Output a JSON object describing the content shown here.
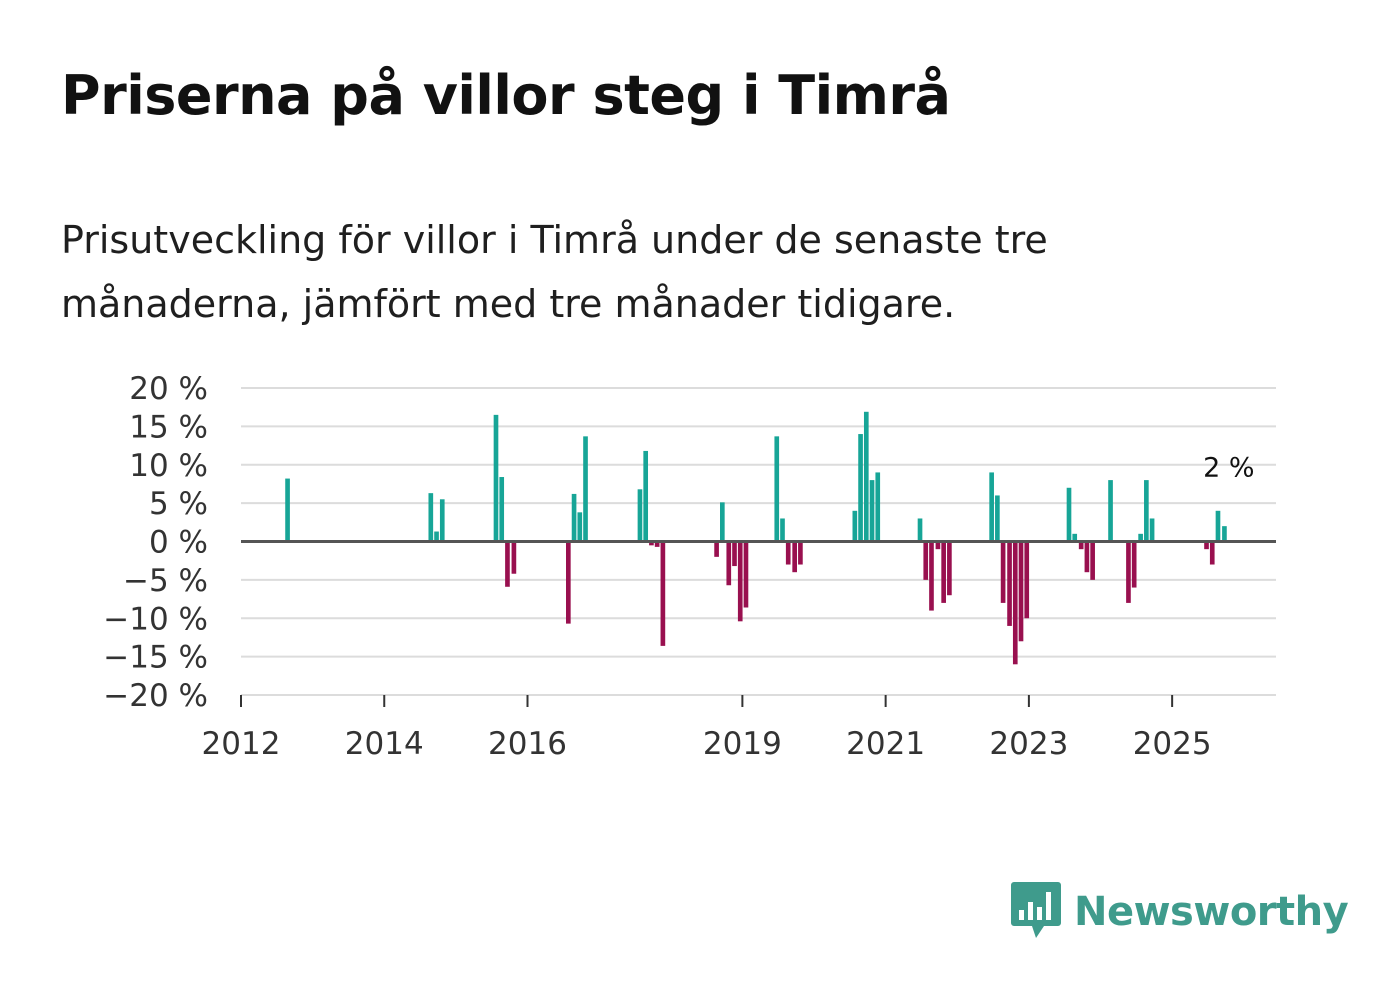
{
  "title": "Priserna på villor steg i Timrå",
  "subtitle": "Prisutveckling för villor i Timrå under de senaste tre månaderna, jämfört med tre månader tidigare.",
  "brand": {
    "name": "Newsworthy",
    "color": "#3f9b8c",
    "icon": "newsworthy-logo-icon"
  },
  "colors": {
    "positive": "#17a597",
    "negative": "#99104f",
    "grid": "#dcdcdc",
    "zero": "#555555"
  },
  "chart_data": {
    "type": "bar",
    "title": "Priserna på villor steg i Timrå",
    "xlabel": "",
    "ylabel": "",
    "xlim": [
      2012,
      2026.45
    ],
    "ylim": [
      -20,
      20
    ],
    "y_ticks": [
      20,
      15,
      10,
      5,
      0,
      -5,
      -10,
      -15,
      -20
    ],
    "y_tick_labels": [
      "20 %",
      "15 %",
      "10 %",
      "5 %",
      "0 %",
      "−5 %",
      "−10 %",
      "−15 %",
      "−20 %"
    ],
    "x_ticks": [
      2012,
      2014,
      2016,
      2019,
      2021,
      2023,
      2025
    ],
    "x_tick_labels": [
      "2012",
      "2014",
      "2016",
      "2019",
      "2021",
      "2023",
      "2025"
    ],
    "annotation": {
      "text": "2 %",
      "x": 2025.75,
      "y": 2
    },
    "bar_width_years": 0.065,
    "series": [
      {
        "name": "Prisutveckling",
        "x": [
          2012.65,
          2014.65,
          2014.73,
          2014.81,
          2015.56,
          2015.64,
          2015.72,
          2015.81,
          2016.57,
          2016.65,
          2016.73,
          2016.81,
          2017.57,
          2017.65,
          2017.73,
          2017.81,
          2017.89,
          2018.64,
          2018.72,
          2018.81,
          2018.89,
          2018.97,
          2019.05,
          2019.48,
          2019.56,
          2019.64,
          2019.73,
          2019.81,
          2020.57,
          2020.65,
          2020.73,
          2020.81,
          2020.89,
          2021.48,
          2021.56,
          2021.64,
          2021.73,
          2021.81,
          2021.89,
          2022.48,
          2022.56,
          2022.64,
          2022.73,
          2022.81,
          2022.89,
          2022.97,
          2023.56,
          2023.64,
          2023.73,
          2023.81,
          2023.89,
          2024.14,
          2024.39,
          2024.47,
          2024.56,
          2024.64,
          2024.72,
          2025.48,
          2025.56,
          2025.64,
          2025.73
        ],
        "values": [
          8.2,
          6.3,
          1.3,
          5.5,
          16.5,
          8.4,
          -5.9,
          -4.2,
          -10.7,
          6.2,
          3.8,
          13.7,
          6.8,
          11.8,
          -0.5,
          -0.7,
          -13.6,
          -2.0,
          5.1,
          -5.7,
          -3.2,
          -10.4,
          -8.6,
          13.7,
          3.0,
          -3.0,
          -4.0,
          -3.0,
          4.0,
          14.0,
          16.9,
          8.0,
          9.0,
          3.0,
          -5.0,
          -9.0,
          -1.0,
          -8.0,
          -7.0,
          9.0,
          6.0,
          -8.0,
          -11.0,
          -16.0,
          -13.0,
          -10.0,
          7.0,
          1.0,
          -1.0,
          -4.0,
          -5.0,
          8.0,
          -8.0,
          -6.0,
          1.0,
          8.0,
          3.0,
          -1.0,
          -3.0,
          4.0,
          2.0
        ]
      }
    ]
  }
}
